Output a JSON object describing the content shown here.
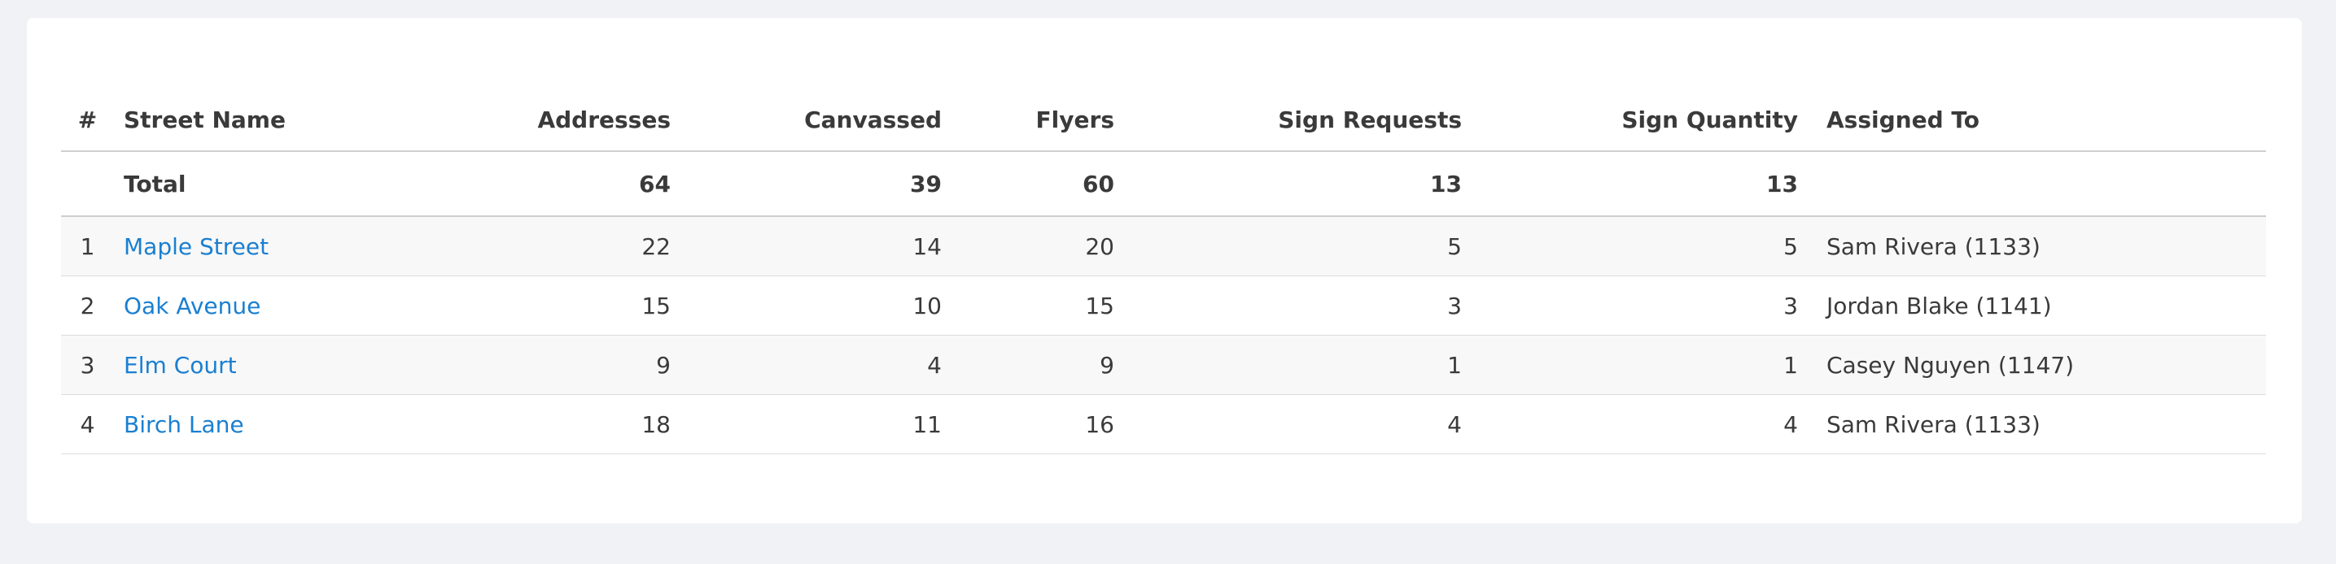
{
  "table": {
    "columns": [
      "#",
      "Street Name",
      "Addresses",
      "Canvassed",
      "Flyers",
      "Sign Requests",
      "Sign Quantity",
      "Assigned To"
    ],
    "total": {
      "label": "Total",
      "values": [
        64,
        39,
        60,
        13,
        13
      ]
    },
    "rows": [
      [
        1,
        "Maple Street",
        22,
        14,
        20,
        5,
        5,
        "Sam Rivera (1133)"
      ],
      [
        2,
        "Oak Avenue",
        15,
        10,
        15,
        3,
        3,
        "Jordan Blake (1141)"
      ],
      [
        3,
        "Elm Court",
        9,
        4,
        9,
        1,
        1,
        "Casey Nguyen (1147)"
      ],
      [
        4,
        "Birch Lane",
        18,
        11,
        16,
        4,
        4,
        "Sam Rivera (1133)"
      ]
    ]
  }
}
